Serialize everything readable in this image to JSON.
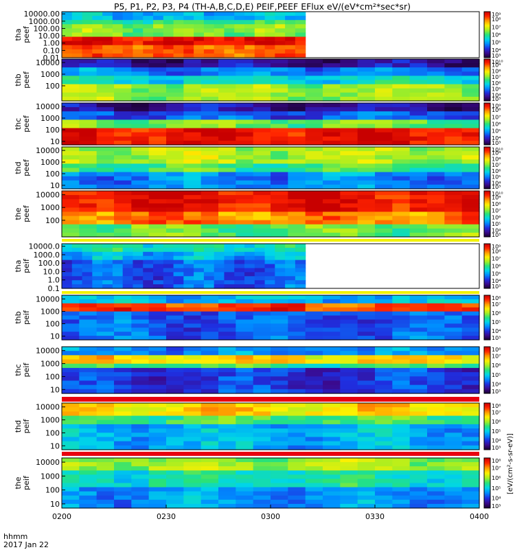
{
  "chart_data": {
    "type": "heatmap",
    "title": "P5, P1, P2, P3, P4 (TH-A,B,C,D,E) PEIF,PEEF EFlux eV/(eV*cm²*sec*sr)",
    "x_ticks": [
      "0200",
      "0230",
      "0300",
      "0330",
      "0400"
    ],
    "x_range": [
      "02:00",
      "04:00"
    ],
    "x_label": "hhmm",
    "date_label": "2017 Jan 22",
    "y_scale": "log",
    "colorbar_label": "[eV/(cm²-s-sr-eV)]",
    "panels": [
      {
        "probe": "tha",
        "species": "peef",
        "ylim": [
          0.01,
          20000
        ],
        "yticks": [
          "10000.00",
          "1000.00",
          "100.00",
          "10.00",
          "1.00",
          "0.10",
          "0.01"
        ],
        "data_end": "03:10",
        "cbar": {
          "lo": 3,
          "hi": 9,
          "ticks": [
            "10⁹",
            "10⁸",
            "10⁷",
            "10⁶",
            "10⁵",
            "10⁴",
            "10³"
          ]
        }
      },
      {
        "probe": "thb",
        "species": "peef",
        "ylim": [
          5,
          20000
        ],
        "yticks": [
          "10000",
          "1000",
          "100"
        ],
        "cbar": {
          "lo": 3,
          "hi": 10,
          "ticks": [
            "10¹⁰",
            "10⁹",
            "10⁸",
            "10⁷",
            "10⁶",
            "10⁵",
            "10⁴",
            "10³"
          ]
        }
      },
      {
        "probe": "thc",
        "species": "peef",
        "ylim": [
          5,
          20000
        ],
        "yticks": [
          "10000",
          "1000",
          "100",
          "10"
        ],
        "cbar": {
          "lo": 3,
          "hi": 9,
          "ticks": [
            "10⁹",
            "10⁸",
            "10⁷",
            "10⁶",
            "10⁵",
            "10⁴",
            "10³"
          ]
        }
      },
      {
        "probe": "thd",
        "species": "peef",
        "ylim": [
          5,
          20000
        ],
        "yticks": [
          "10000",
          "1000",
          "100",
          "10"
        ],
        "cbar": {
          "lo": 3,
          "hi": 10,
          "ticks": [
            "10¹⁰",
            "10⁹",
            "10⁸",
            "10⁷",
            "10⁶",
            "10⁵",
            "10⁴",
            "10³"
          ]
        }
      },
      {
        "probe": "the",
        "species": "peef",
        "ylim": [
          5,
          20000
        ],
        "yticks": [
          "10000",
          "1000",
          "100"
        ],
        "cbar": {
          "lo": 3,
          "hi": 10,
          "ticks": [
            "10¹⁰",
            "10⁹",
            "10⁸",
            "10⁷",
            "10⁶",
            "10⁵",
            "10⁴",
            "10³"
          ]
        }
      },
      {
        "probe": "tha",
        "species": "peif",
        "ylim": [
          0.1,
          20000
        ],
        "yticks": [
          "10000.0",
          "1000.0",
          "100.0",
          "10.0",
          "1.0",
          "0.1"
        ],
        "data_end": "03:10",
        "cbar": {
          "lo": 3,
          "hi": 9,
          "ticks": [
            "10⁹",
            "10⁸",
            "10⁷",
            "10⁶",
            "10⁵",
            "10⁴",
            "10³"
          ]
        }
      },
      {
        "probe": "thb",
        "species": "peif",
        "ylim": [
          5,
          20000
        ],
        "yticks": [
          "10000",
          "1000",
          "100",
          "10"
        ],
        "cbar": {
          "lo": 3,
          "hi": 8,
          "ticks": [
            "10⁸",
            "10⁷",
            "10⁶",
            "10⁵",
            "10⁴",
            "10³"
          ]
        }
      },
      {
        "probe": "thc",
        "species": "peif",
        "ylim": [
          5,
          20000
        ],
        "yticks": [
          "10000",
          "1000",
          "100",
          "10"
        ],
        "cbar": {
          "lo": 3,
          "hi": 8,
          "ticks": [
            "10⁸",
            "10⁷",
            "10⁶",
            "10⁵",
            "10⁴",
            "10³"
          ]
        }
      },
      {
        "probe": "thd",
        "species": "peif",
        "ylim": [
          5,
          20000
        ],
        "yticks": [
          "10000",
          "1000",
          "100",
          "10"
        ],
        "cbar": {
          "lo": 3,
          "hi": 8,
          "ticks": [
            "10⁸",
            "10⁷",
            "10⁶",
            "10⁵",
            "10⁴",
            "10³"
          ]
        }
      },
      {
        "probe": "the",
        "species": "peif",
        "ylim": [
          5,
          20000
        ],
        "yticks": [
          "10000",
          "1000",
          "100",
          "10"
        ],
        "cbar": {
          "lo": 3,
          "hi": 8,
          "ticks": [
            "10⁸",
            "10⁷",
            "10⁶",
            "10⁵",
            "10⁴",
            "10³"
          ]
        }
      }
    ]
  },
  "colors": {
    "palette": [
      "#1a0030",
      "#3a0a8f",
      "#1f2fe0",
      "#008cff",
      "#00d6e8",
      "#27e27a",
      "#a6ee22",
      "#fff000",
      "#ff9a00",
      "#ff2200",
      "#c80000"
    ],
    "gap_band_red": "#e8000f",
    "gap_band_yellow": "#f2f200"
  }
}
